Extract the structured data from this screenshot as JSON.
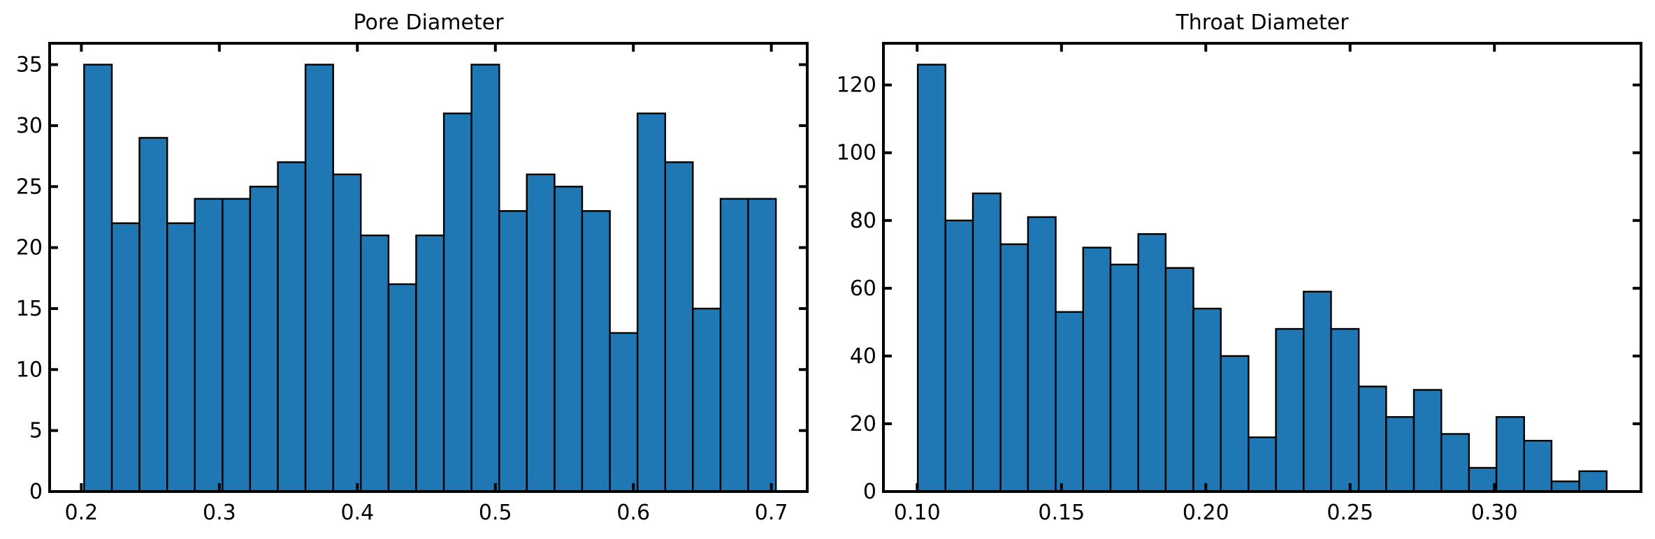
{
  "colors": {
    "bar_fill": "#1f77b4",
    "bar_edge": "#000000",
    "axes": "#000000",
    "background": "#ffffff"
  },
  "chart_data": [
    {
      "type": "bar",
      "title": "Pore Diameter",
      "xlabel": "",
      "ylabel": "",
      "bin_edges": [
        0.202,
        0.2221,
        0.2421,
        0.2622,
        0.2822,
        0.3023,
        0.3223,
        0.3424,
        0.3624,
        0.3825,
        0.4025,
        0.4226,
        0.4426,
        0.4627,
        0.4827,
        0.5028,
        0.5228,
        0.5429,
        0.5629,
        0.583,
        0.603,
        0.6231,
        0.6431,
        0.6632,
        0.6832,
        0.7033
      ],
      "values": [
        35,
        22,
        29,
        22,
        24,
        24,
        25,
        27,
        35,
        26,
        21,
        17,
        21,
        31,
        35,
        23,
        26,
        25,
        23,
        13,
        31,
        27,
        15,
        24,
        24
      ],
      "xlim": [
        0.177,
        0.726
      ],
      "ylim": [
        0,
        36.75
      ],
      "xticks": [
        0.2,
        0.3,
        0.4,
        0.5,
        0.6,
        0.7
      ],
      "xtick_labels": [
        "0.2",
        "0.3",
        "0.4",
        "0.5",
        "0.6",
        "0.7"
      ],
      "yticks": [
        0,
        5,
        10,
        15,
        20,
        25,
        30,
        35
      ],
      "ytick_labels": [
        "0",
        "5",
        "10",
        "15",
        "20",
        "25",
        "30",
        "35"
      ],
      "grid": false,
      "legend": "none"
    },
    {
      "type": "bar",
      "title": "Throat Diameter",
      "xlabel": "",
      "ylabel": "",
      "bin_edges": [
        0.1002,
        0.1098,
        0.1193,
        0.1289,
        0.1384,
        0.148,
        0.1575,
        0.167,
        0.1766,
        0.1861,
        0.1957,
        0.2052,
        0.2148,
        0.2243,
        0.2339,
        0.2434,
        0.253,
        0.2625,
        0.2721,
        0.2816,
        0.2912,
        0.3007,
        0.3103,
        0.3198,
        0.3294,
        0.3389
      ],
      "values": [
        126,
        80,
        88,
        73,
        81,
        53,
        72,
        67,
        76,
        66,
        54,
        40,
        16,
        48,
        59,
        48,
        31,
        22,
        30,
        17,
        7,
        22,
        15,
        3,
        6
      ],
      "xlim": [
        0.0883,
        0.3508
      ],
      "ylim": [
        0,
        132.3
      ],
      "xticks": [
        0.1,
        0.15,
        0.2,
        0.25,
        0.3
      ],
      "xtick_labels": [
        "0.10",
        "0.15",
        "0.20",
        "0.25",
        "0.30"
      ],
      "yticks": [
        0,
        20,
        40,
        60,
        80,
        100,
        120
      ],
      "ytick_labels": [
        "0",
        "20",
        "40",
        "60",
        "80",
        "100",
        "120"
      ],
      "grid": false,
      "legend": "none"
    }
  ]
}
